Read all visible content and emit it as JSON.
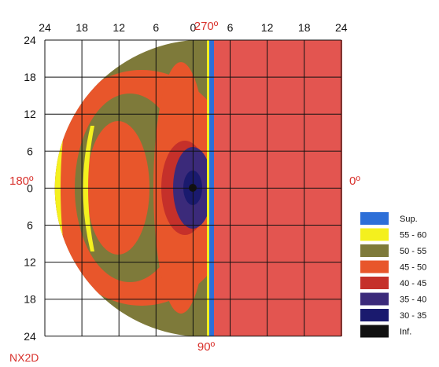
{
  "chart_data": {
    "type": "heatmap",
    "caption": "NX2D",
    "x_ticks_top": [
      "24",
      "18",
      "12",
      "6",
      "0",
      "6",
      "12",
      "18",
      "24"
    ],
    "y_ticks_left": [
      "24",
      "18",
      "12",
      "6",
      "0",
      "6",
      "12",
      "18",
      "24"
    ],
    "direction_labels": {
      "top": "270º",
      "bottom": "90º",
      "left": "180º",
      "right": "0º"
    },
    "grid": true,
    "legend_position": "right",
    "legend": [
      {
        "label": "Sup.",
        "color": "#2d6fd8"
      },
      {
        "label": "55 - 60",
        "color": "#f4f01e"
      },
      {
        "label": "50 - 55",
        "color": "#7e7a3a"
      },
      {
        "label": "45 - 50",
        "color": "#e8562b"
      },
      {
        "label": "40 - 45",
        "color": "#c5302a"
      },
      {
        "label": "35 - 40",
        "color": "#3b2a7a"
      },
      {
        "label": "30 - 35",
        "color": "#1a1a6e"
      },
      {
        "label": "Inf.",
        "color": "#111111"
      }
    ],
    "background_color": "#e35550"
  }
}
